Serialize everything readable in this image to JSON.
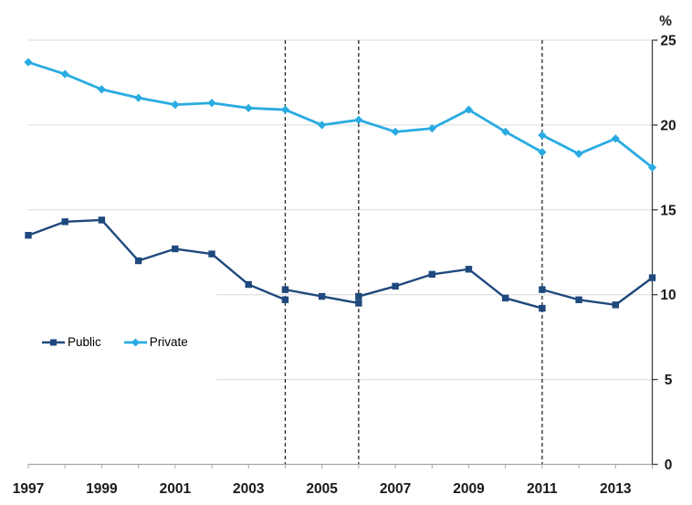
{
  "chart_data": {
    "type": "line",
    "title": "",
    "xlabel": "",
    "ylabel": "%",
    "x": [
      1997,
      1998,
      1999,
      2000,
      2001,
      2002,
      2003,
      2004,
      2005,
      2006,
      2007,
      2008,
      2009,
      2010,
      2011,
      2012,
      2013,
      2014
    ],
    "x_axis_tick_labels": [
      "1997",
      "1999",
      "2001",
      "2003",
      "2005",
      "2007",
      "2009",
      "2011",
      "2013"
    ],
    "x_axis_tick_label_years": [
      1997,
      1999,
      2001,
      2003,
      2005,
      2007,
      2009,
      2011,
      2013
    ],
    "y_ticks": [
      0,
      5,
      10,
      15,
      20,
      25
    ],
    "y_tick_labels": [
      "0",
      "5",
      "10",
      "15",
      "20",
      "25"
    ],
    "ylim": [
      0,
      25
    ],
    "xlim": [
      1997,
      2014
    ],
    "grid": "horizontal",
    "short_gridline_values": [
      5,
      10
    ],
    "series_break_years": [
      2004,
      2006,
      2011
    ],
    "legend_position": "inside-left-middle",
    "series": [
      {
        "name": "Public",
        "color": "#1F497D",
        "marker": "square",
        "segments": [
          {
            "x": [
              1997,
              1998,
              1999,
              2000,
              2001,
              2002,
              2003,
              2004
            ],
            "y": [
              13.5,
              14.3,
              14.4,
              12.0,
              12.7,
              12.4,
              10.6,
              9.7
            ]
          },
          {
            "x": [
              2004,
              2005,
              2006
            ],
            "y": [
              10.3,
              9.9,
              9.5
            ]
          },
          {
            "x": [
              2006,
              2007,
              2008,
              2009,
              2010,
              2011
            ],
            "y": [
              9.9,
              10.5,
              11.2,
              11.5,
              9.8,
              9.2
            ]
          },
          {
            "x": [
              2011,
              2012,
              2013,
              2014
            ],
            "y": [
              10.3,
              9.7,
              9.4,
              11.0
            ]
          }
        ]
      },
      {
        "name": "Private",
        "color": "#29ABE2",
        "marker": "diamond",
        "segments": [
          {
            "x": [
              1997,
              1998,
              1999,
              2000,
              2001,
              2002,
              2003,
              2004,
              2005,
              2006,
              2007,
              2008,
              2009,
              2010,
              2011
            ],
            "y": [
              23.7,
              23.0,
              22.1,
              21.6,
              21.2,
              21.3,
              21.0,
              20.9,
              20.0,
              20.3,
              19.6,
              19.8,
              20.9,
              19.6,
              18.4
            ]
          },
          {
            "x": [
              2011,
              2012,
              2013,
              2014
            ],
            "y": [
              19.4,
              18.3,
              19.2,
              17.5
            ]
          }
        ]
      }
    ],
    "colors": {
      "gridline": "#d9d9d9",
      "x_axis": "#a6a6a6",
      "y_axis": "#404040",
      "break_line": "#262626",
      "tick_label": "#1a1a1a"
    }
  }
}
